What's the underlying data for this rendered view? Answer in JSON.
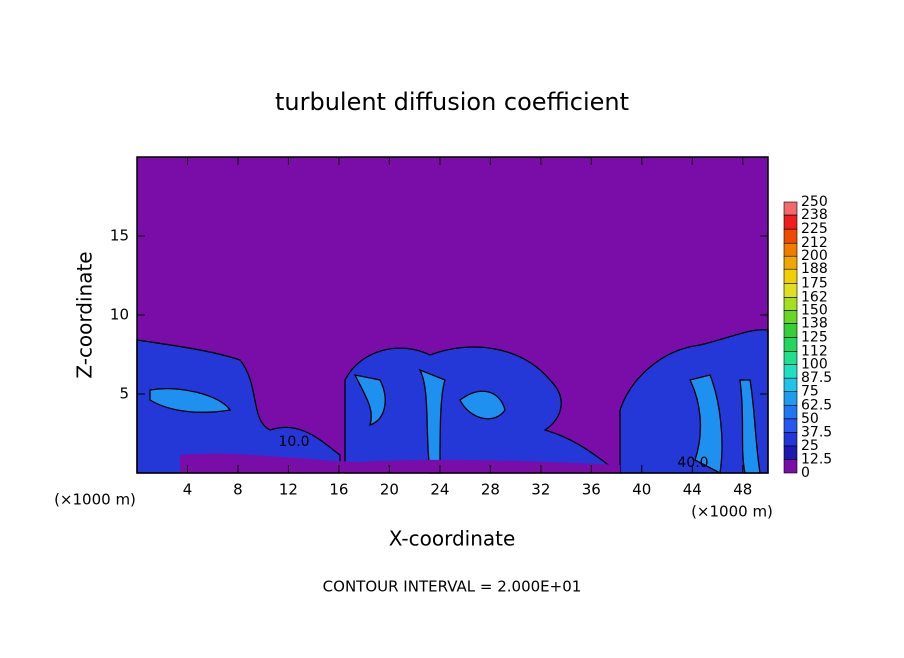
{
  "chart_data": {
    "type": "contour",
    "title": "turbulent diffusion coefficient",
    "x_label": "X-coordinate",
    "y_label": "Z-coordinate",
    "x_unit": "(×1000 m)",
    "x_unit_right": "(×1000 m)",
    "footer": "CONTOUR INTERVAL = 2.000E+01",
    "xlim": [
      0,
      50
    ],
    "ylim": [
      0,
      20
    ],
    "xticks": [
      4,
      8,
      12,
      16,
      20,
      24,
      28,
      32,
      36,
      40,
      44,
      48
    ],
    "yticks": [
      5,
      10,
      15
    ],
    "annotations": [
      "10.0",
      "40.0"
    ],
    "background_color": "#7a0ca8",
    "colorbar": {
      "levels": [
        0,
        12.5,
        25,
        37.5,
        50,
        62.5,
        75,
        87.5,
        100,
        112,
        125,
        138,
        150,
        162,
        175,
        188,
        200,
        212,
        225,
        238,
        250
      ],
      "colors": [
        "#7a0ca8",
        "#1c18b0",
        "#2036d8",
        "#2a56f0",
        "#1e78f0",
        "#1e9cf0",
        "#20c4ea",
        "#20e0c4",
        "#20e090",
        "#20d860",
        "#34d034",
        "#66d820",
        "#a4e020",
        "#e0e020",
        "#f0d000",
        "#f0a800",
        "#f07c00",
        "#f04a00",
        "#f01e1e",
        "#f06a6a"
      ]
    }
  }
}
